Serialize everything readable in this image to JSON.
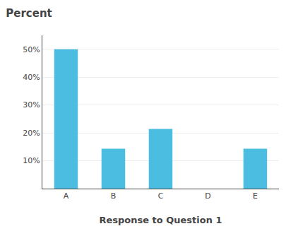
{
  "chart_data": {
    "type": "bar",
    "title": "Percent",
    "xlabel": "Response to Question 1",
    "categories": [
      "A",
      "B",
      "C",
      "D",
      "E"
    ],
    "values": [
      50,
      14.3,
      21.4,
      0,
      14.3
    ],
    "color": "#4BBDE0",
    "ylim": [
      0,
      55
    ],
    "yticks": [
      {
        "value": 10,
        "label": "10%"
      },
      {
        "value": 20,
        "label": "20%"
      },
      {
        "value": 30,
        "label": "30%"
      },
      {
        "value": 40,
        "label": "40%"
      },
      {
        "value": 50,
        "label": "50%"
      }
    ],
    "grid": true
  }
}
